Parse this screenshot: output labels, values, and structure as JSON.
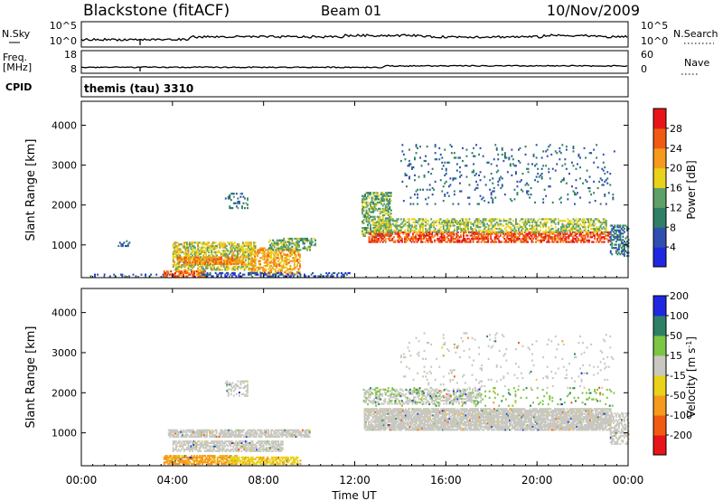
{
  "header": {
    "station": "Blackstone (fitACF)",
    "beam": "Beam 01",
    "date": "10/Nov/2009"
  },
  "status_panels": {
    "nsky_label": "N.Sky",
    "nsky_ticks": [
      "10^5",
      "10^0"
    ],
    "nsearch_label": "N.Search",
    "nsearch_ticks": [
      "10^5",
      "10^0"
    ],
    "freq_label": "Freq.",
    "freq_unit": "[MHz]",
    "freq_ticks": [
      "18",
      "8"
    ],
    "nave_label": "Nave",
    "nave_ticks": [
      "60",
      "0"
    ],
    "cpid_label": "CPID",
    "cpid_value": "themis (tau) 3310"
  },
  "chart_data": [
    {
      "type": "heatmap",
      "title": "",
      "xlabel": "Time UT",
      "ylabel": "Slant Range [km]",
      "xlim": [
        0,
        24
      ],
      "ylim": [
        180,
        4600
      ],
      "x_ticks": [
        0,
        4,
        8,
        12,
        16,
        20,
        24
      ],
      "x_tick_labels": [
        "00:00",
        "04:00",
        "08:00",
        "12:00",
        "16:00",
        "20:00",
        "00:00"
      ],
      "y_ticks": [
        1000,
        2000,
        3000,
        4000
      ],
      "y_tick_labels": [
        "1000",
        "2000",
        "3000",
        "4000"
      ],
      "colorbar": {
        "label": "Power [dB]",
        "ticks": [
          4,
          8,
          12,
          16,
          20,
          24,
          28
        ],
        "colors": [
          "#1f28e0",
          "#2e4fb0",
          "#2f7f66",
          "#5fa06a",
          "#e8d21a",
          "#f59a1c",
          "#f05a12",
          "#e8141a"
        ]
      },
      "regions": [
        {
          "t0": 0.2,
          "t1": 3.8,
          "r0": 190,
          "r1": 260,
          "value": 6,
          "density": 0.25
        },
        {
          "t0": 1.6,
          "t1": 2.1,
          "r0": 950,
          "r1": 1100,
          "value": 8,
          "density": 0.35
        },
        {
          "t0": 3.6,
          "t1": 5.4,
          "r0": 190,
          "r1": 320,
          "value": 26,
          "density": 0.7
        },
        {
          "t0": 4.0,
          "t1": 7.6,
          "r0": 350,
          "r1": 1050,
          "value": 17,
          "density": 0.6
        },
        {
          "t0": 4.2,
          "t1": 7.2,
          "r0": 500,
          "r1": 680,
          "value": 23,
          "density": 0.7
        },
        {
          "t0": 7.4,
          "t1": 9.6,
          "r0": 250,
          "r1": 900,
          "value": 21,
          "density": 0.55
        },
        {
          "t0": 8.2,
          "t1": 10.3,
          "r0": 850,
          "r1": 1150,
          "value": 14,
          "density": 0.5
        },
        {
          "t0": 6.3,
          "t1": 7.3,
          "r0": 1900,
          "r1": 2300,
          "value": 9,
          "density": 0.22
        },
        {
          "t0": 5.2,
          "t1": 11.8,
          "r0": 190,
          "r1": 280,
          "value": 6,
          "density": 0.4
        },
        {
          "t0": 12.3,
          "t1": 13.6,
          "r0": 1200,
          "r1": 2300,
          "value": 14,
          "density": 0.55
        },
        {
          "t0": 12.6,
          "t1": 23.2,
          "r0": 1050,
          "r1": 1300,
          "value": 27,
          "density": 0.6
        },
        {
          "t0": 12.8,
          "t1": 23.0,
          "r0": 1300,
          "r1": 1650,
          "value": 16,
          "density": 0.5
        },
        {
          "t0": 14.0,
          "t1": 23.4,
          "r0": 2000,
          "r1": 3500,
          "value": 8,
          "density": 0.06
        },
        {
          "t0": 23.2,
          "t1": 24.0,
          "r0": 700,
          "r1": 1500,
          "value": 9,
          "density": 0.45
        }
      ]
    },
    {
      "type": "heatmap",
      "title": "",
      "xlabel": "Time UT",
      "ylabel": "Slant Range [km]",
      "xlim": [
        0,
        24
      ],
      "ylim": [
        180,
        4600
      ],
      "x_ticks": [
        0,
        4,
        8,
        12,
        16,
        20,
        24
      ],
      "x_tick_labels": [
        "00:00",
        "04:00",
        "08:00",
        "12:00",
        "16:00",
        "20:00",
        "00:00"
      ],
      "y_ticks": [
        1000,
        2000,
        3000,
        4000
      ],
      "y_tick_labels": [
        "1000",
        "2000",
        "3000",
        "4000"
      ],
      "colorbar": {
        "label": "Velocity [m s-1]",
        "ticks": [
          -200,
          -100,
          -50,
          -15,
          15,
          50,
          100,
          200
        ],
        "colors": [
          "#e8141a",
          "#f05a12",
          "#f59a1c",
          "#e8d21a",
          "#c8c8c0",
          "#7cc644",
          "#2f7f66",
          "#1f28e0"
        ]
      },
      "regions": [
        {
          "t0": 3.8,
          "t1": 10.0,
          "r0": 880,
          "r1": 1080,
          "value": 0,
          "density": 0.75
        },
        {
          "t0": 4.0,
          "t1": 8.8,
          "r0": 520,
          "r1": 800,
          "value": 0,
          "density": 0.7
        },
        {
          "t0": 3.6,
          "t1": 6.8,
          "r0": 200,
          "r1": 420,
          "value": -60,
          "density": 0.75
        },
        {
          "t0": 6.4,
          "t1": 9.6,
          "r0": 200,
          "r1": 380,
          "value": -40,
          "density": 0.6
        },
        {
          "t0": 6.3,
          "t1": 7.3,
          "r0": 1900,
          "r1": 2300,
          "value": 0,
          "density": 0.35
        },
        {
          "t0": 12.4,
          "t1": 23.2,
          "r0": 1050,
          "r1": 1600,
          "value": 0,
          "density": 0.85
        },
        {
          "t0": 12.4,
          "t1": 17.5,
          "r0": 1700,
          "r1": 2100,
          "value": 0,
          "density": 0.45
        },
        {
          "t0": 12.3,
          "t1": 23.4,
          "r0": 1650,
          "r1": 2100,
          "value": 40,
          "density": 0.08
        },
        {
          "t0": 14.0,
          "t1": 23.4,
          "r0": 2100,
          "r1": 3500,
          "value": 0,
          "density": 0.04
        },
        {
          "t0": 23.2,
          "t1": 24.0,
          "r0": 700,
          "r1": 1500,
          "value": 0,
          "density": 0.5
        }
      ]
    }
  ]
}
